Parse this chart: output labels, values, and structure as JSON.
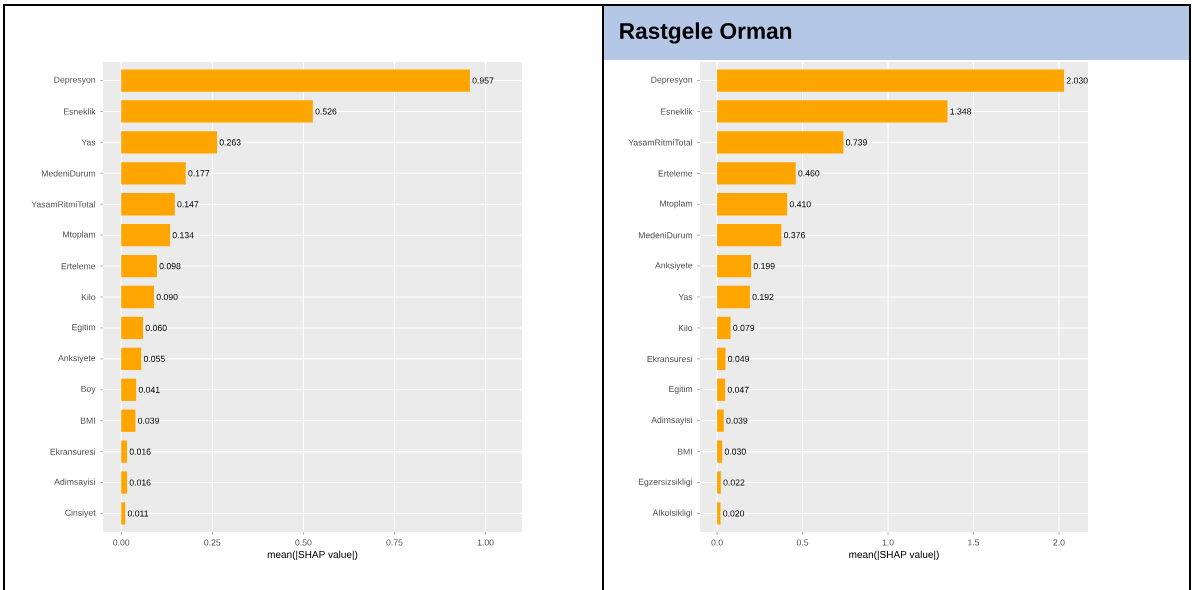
{
  "chart_data": [
    {
      "type": "bar",
      "orientation": "horizontal",
      "xlabel": "mean(|SHAP value|)",
      "color": "#ffa500",
      "grid": true,
      "categories": [
        "Depresyon",
        "Esneklik",
        "Yas",
        "MedeniDurum",
        "YasamRitmiTotal",
        "Mtoplam",
        "Erteleme",
        "Kilo",
        "Egitim",
        "Anksiyete",
        "Boy",
        "BMI",
        "Ekransuresi",
        "Adimsayisi",
        "Cinsiyet"
      ],
      "values": [
        0.957,
        0.526,
        0.263,
        0.177,
        0.147,
        0.134,
        0.098,
        0.09,
        0.06,
        0.055,
        0.041,
        0.039,
        0.016,
        0.016,
        0.011
      ],
      "value_labels": [
        "0.957",
        "0.526",
        "0.263",
        "0.177",
        "0.147",
        "0.134",
        "0.098",
        "0.090",
        "0.060",
        "0.055",
        "0.041",
        "0.039",
        "0.016",
        "0.016",
        "0.011"
      ],
      "xlim": [
        -0.05,
        1.1
      ],
      "xticks": [
        {
          "value": 0,
          "label": "0.00"
        },
        {
          "value": 0.25,
          "label": "0.25"
        },
        {
          "value": 0.5,
          "label": "0.50"
        },
        {
          "value": 0.75,
          "label": "0.75"
        },
        {
          "value": 1,
          "label": "1.00"
        }
      ]
    },
    {
      "type": "bar",
      "orientation": "horizontal",
      "title": "Rastgele Orman",
      "xlabel": "mean(|SHAP value|)",
      "color": "#ffa500",
      "grid": true,
      "categories": [
        "Depresyon",
        "Esneklik",
        "YasamRitmiTotal",
        "Erteleme",
        "Mtoplam",
        "MedeniDurum",
        "Anksiyete",
        "Yas",
        "Kilo",
        "Ekransuresi",
        "Egitim",
        "Adimsayisi",
        "BMI",
        "Egzersizsikligi",
        "Alkolsikligi"
      ],
      "values": [
        2.03,
        1.348,
        0.739,
        0.46,
        0.41,
        0.376,
        0.199,
        0.192,
        0.079,
        0.049,
        0.047,
        0.039,
        0.03,
        0.022,
        0.02
      ],
      "value_labels": [
        "2.030",
        "1.348",
        "0.739",
        "0.460",
        "0.410",
        "0.376",
        "0.199",
        "0.192",
        "0.079",
        "0.049",
        "0.047",
        "0.039",
        "0.030",
        "0.022",
        "0.020"
      ],
      "xlim": [
        -0.1,
        2.17
      ],
      "xticks": [
        {
          "value": 0,
          "label": "0.0"
        },
        {
          "value": 0.5,
          "label": "0.5"
        },
        {
          "value": 1,
          "label": "1.0"
        },
        {
          "value": 1.5,
          "label": "1.5"
        },
        {
          "value": 2,
          "label": "2.0"
        }
      ]
    }
  ]
}
